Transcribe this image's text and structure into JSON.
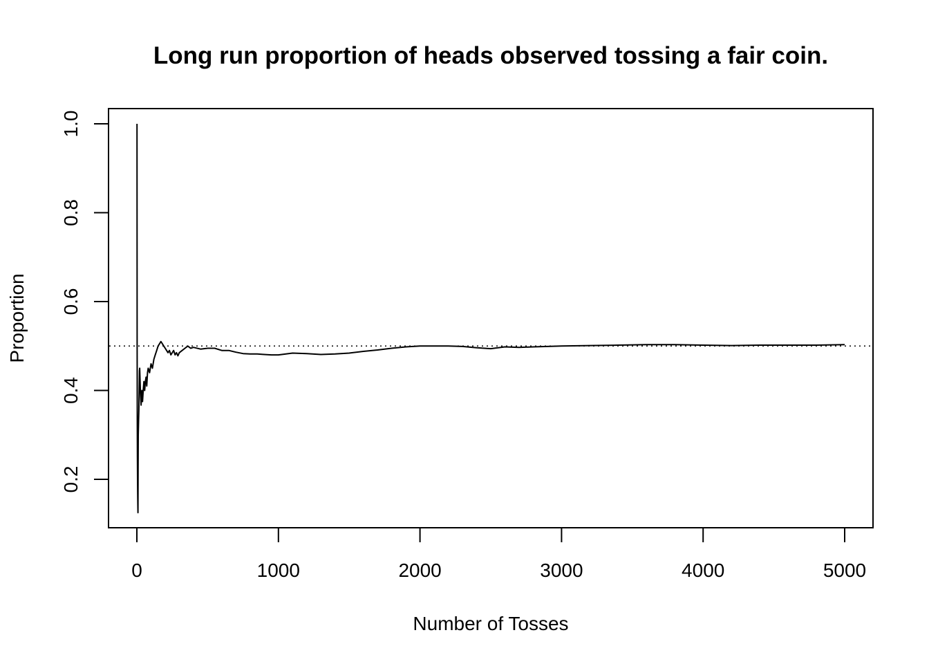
{
  "chart_data": {
    "type": "line",
    "title": "Long run proportion of heads observed tossing a fair coin.",
    "xlabel": "Number of Tosses",
    "ylabel": "Proportion",
    "xlim": [
      0,
      5000
    ],
    "ylim": [
      0.2,
      1.0
    ],
    "x_ticks": [
      0,
      1000,
      2000,
      3000,
      4000,
      5000
    ],
    "x_tick_labels": [
      "0",
      "1000",
      "2000",
      "3000",
      "4000",
      "5000"
    ],
    "y_ticks": [
      0.2,
      0.4,
      0.6,
      0.8,
      1.0
    ],
    "y_tick_labels": [
      "0.2",
      "0.4",
      "0.6",
      "0.8",
      "1.0"
    ],
    "grid": false,
    "reference_line": {
      "y": 0.5,
      "style": "dotted"
    },
    "series": [
      {
        "x": [
          1,
          2,
          3,
          4,
          5,
          6,
          7,
          8,
          9,
          10,
          12,
          14,
          16,
          18,
          20,
          25,
          30,
          35,
          40,
          45,
          50,
          55,
          60,
          65,
          70,
          75,
          80,
          90,
          100,
          110,
          120,
          130,
          140,
          150,
          160,
          170,
          180,
          190,
          200,
          210,
          220,
          230,
          240,
          250,
          260,
          270,
          280,
          290,
          300,
          320,
          340,
          360,
          380,
          400,
          450,
          500,
          550,
          600,
          650,
          700,
          750,
          800,
          850,
          900,
          950,
          1000,
          1100,
          1200,
          1300,
          1400,
          1500,
          1600,
          1700,
          1800,
          1900,
          2000,
          2100,
          2200,
          2300,
          2400,
          2500,
          2600,
          2700,
          2800,
          2900,
          3000,
          3200,
          3400,
          3600,
          3800,
          4000,
          4200,
          4400,
          4600,
          4800,
          5000
        ],
        "y": [
          1.0,
          0.5,
          0.333,
          0.25,
          0.2,
          0.167,
          0.143,
          0.125,
          0.222,
          0.3,
          0.333,
          0.357,
          0.4,
          0.444,
          0.45,
          0.4,
          0.367,
          0.4,
          0.375,
          0.4,
          0.42,
          0.4,
          0.42,
          0.43,
          0.41,
          0.44,
          0.45,
          0.44,
          0.46,
          0.45,
          0.47,
          0.48,
          0.49,
          0.5,
          0.505,
          0.51,
          0.505,
          0.5,
          0.495,
          0.49,
          0.485,
          0.49,
          0.48,
          0.485,
          0.49,
          0.48,
          0.485,
          0.478,
          0.485,
          0.49,
          0.495,
          0.5,
          0.495,
          0.497,
          0.493,
          0.495,
          0.495,
          0.49,
          0.49,
          0.486,
          0.483,
          0.482,
          0.482,
          0.481,
          0.48,
          0.48,
          0.484,
          0.483,
          0.481,
          0.482,
          0.484,
          0.488,
          0.491,
          0.495,
          0.498,
          0.5,
          0.5,
          0.5,
          0.499,
          0.496,
          0.494,
          0.498,
          0.497,
          0.498,
          0.499,
          0.5,
          0.501,
          0.502,
          0.503,
          0.503,
          0.502,
          0.501,
          0.502,
          0.502,
          0.502,
          0.503
        ]
      }
    ]
  }
}
